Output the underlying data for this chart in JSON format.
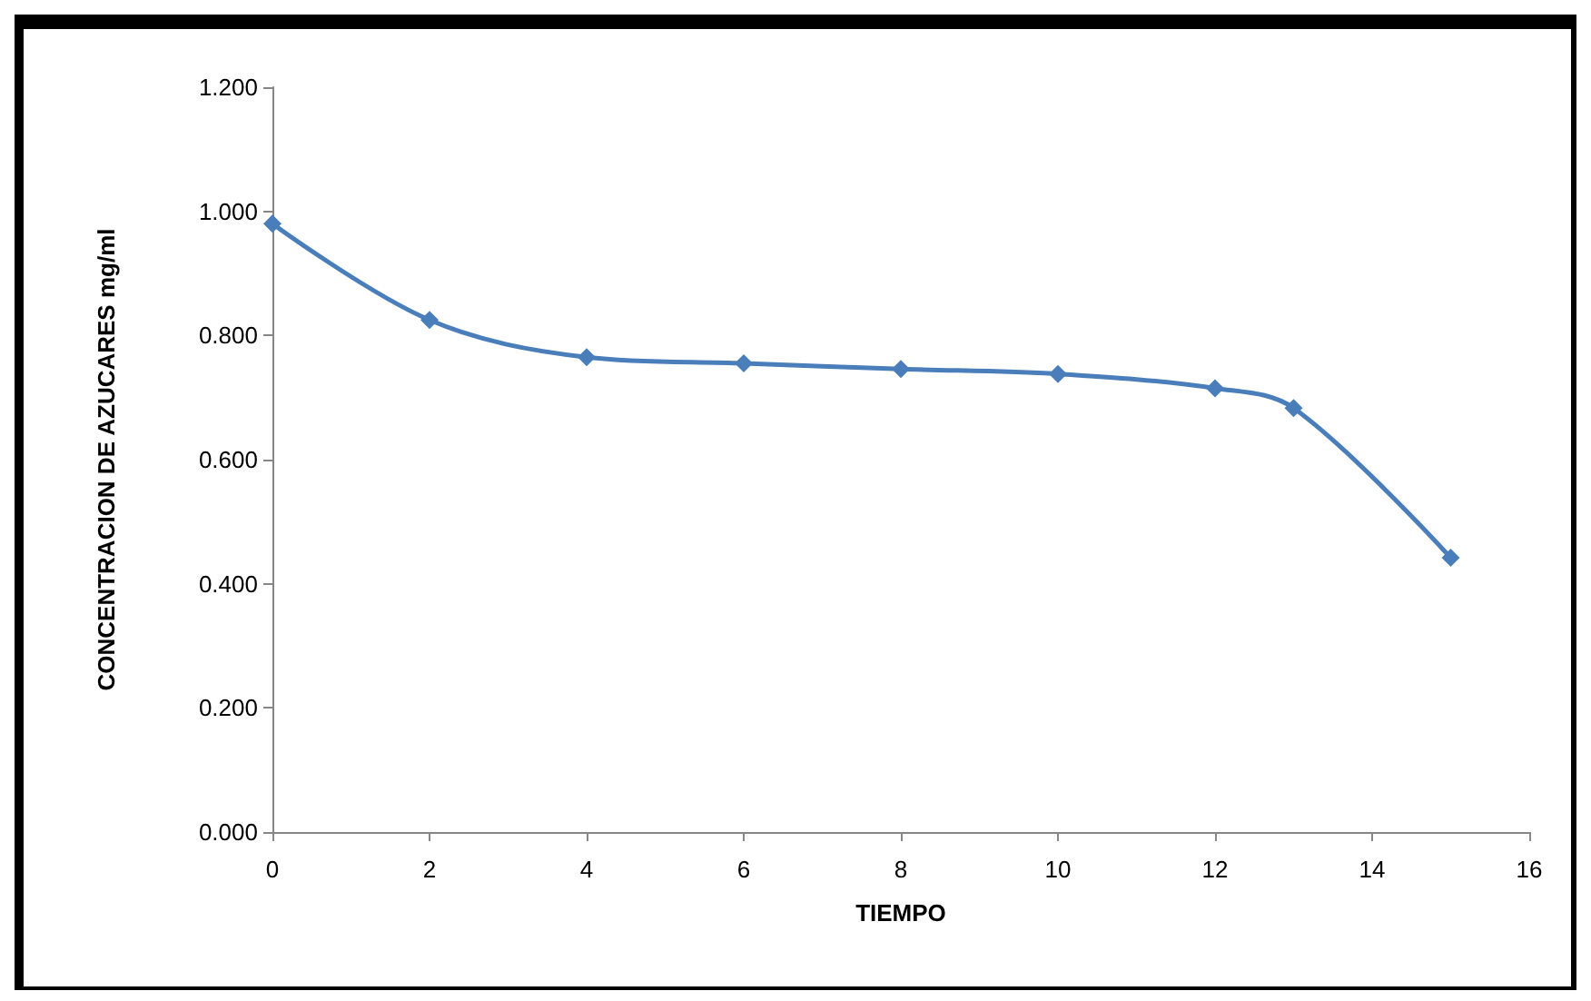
{
  "chart_data": {
    "type": "line",
    "xlabel": "TIEMPO",
    "ylabel": "CONCENTRACION DE AZUCARES mg/ml",
    "x": [
      0,
      2,
      4,
      6,
      8,
      10,
      12,
      13,
      15
    ],
    "series": [
      {
        "color": "#4a7ebb",
        "values": [
          0.98,
          0.825,
          0.765,
          0.755,
          0.746,
          0.738,
          0.715,
          0.683,
          0.442
        ]
      }
    ],
    "xlim": [
      0,
      16
    ],
    "xticks": [
      0,
      2,
      4,
      6,
      8,
      10,
      12,
      14,
      16
    ],
    "ylim": [
      0,
      1.2
    ],
    "yticks": [
      {
        "value": 0,
        "label": "0.000"
      },
      {
        "value": 0.2,
        "label": "0.200"
      },
      {
        "value": 0.4,
        "label": "0.400"
      },
      {
        "value": 0.6,
        "label": "0.600"
      },
      {
        "value": 0.8,
        "label": "0.800"
      },
      {
        "value": 1.0,
        "label": "1.000"
      },
      {
        "value": 1.2,
        "label": "1.200"
      }
    ],
    "grid": false,
    "marker": "diamond",
    "line_style": "solid"
  }
}
